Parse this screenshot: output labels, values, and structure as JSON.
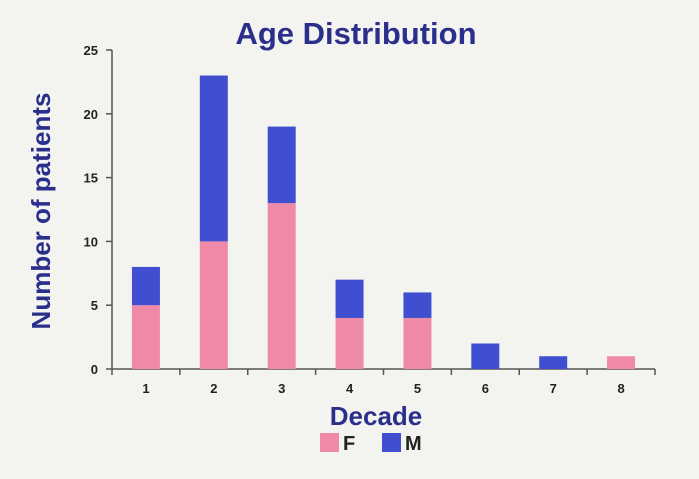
{
  "chart_data": {
    "type": "bar",
    "stacked": true,
    "title": "Age Distribution",
    "xlabel": "Decade",
    "ylabel": "Number of patients",
    "categories": [
      "1",
      "2",
      "3",
      "4",
      "5",
      "6",
      "7",
      "8"
    ],
    "series": [
      {
        "name": "F",
        "color": "#ee8aa8",
        "values": [
          5,
          10,
          13,
          4,
          4,
          0,
          0,
          1
        ]
      },
      {
        "name": "M",
        "color": "#3f4fd0",
        "values": [
          3,
          13,
          6,
          3,
          2,
          2,
          1,
          0
        ]
      }
    ],
    "ylim": [
      0,
      25
    ],
    "yticks": [
      0,
      5,
      10,
      15,
      20,
      25
    ],
    "grid": false,
    "legend": "bottom"
  }
}
